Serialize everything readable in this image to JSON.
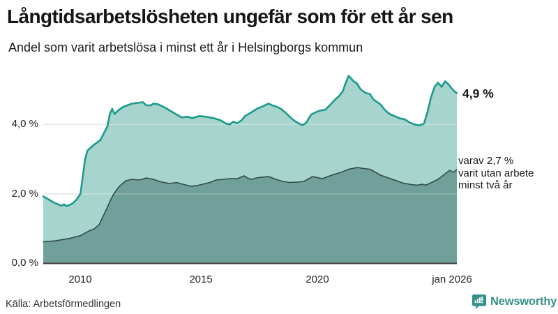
{
  "header": {
    "title": "Långtidsarbetslösheten ungefär som för ett år sen",
    "subtitle": "Andel som varit arbetslösa i minst ett år i Helsingborgs kommun"
  },
  "annotations": {
    "latest_total": "4,9 %",
    "secondary": [
      "varav 2,7 %",
      "varit utan arbete",
      "minst två år"
    ]
  },
  "footer": {
    "source": "Källa: Arbetsförmedlingen",
    "brand_name": "Newsworthy",
    "brand_color": "#35918a"
  },
  "chart_data": {
    "type": "area",
    "title": "Långtidsarbetslösheten ungefär som för ett år sen",
    "subtitle": "Andel som varit arbetslösa i minst ett år i Helsingborgs kommun",
    "unit": "%",
    "grid": "horizontal",
    "legend_position": "annotated-right",
    "x_range": [
      2008.42,
      2026.0
    ],
    "y_range": [
      0,
      5.62
    ],
    "x_ticks": [
      {
        "label": "2010",
        "year": 2010
      },
      {
        "label": "2015",
        "year": 2015
      },
      {
        "label": "2020",
        "year": 2020
      },
      {
        "label": "jan 2026",
        "year": 2026.0
      }
    ],
    "y_ticks": [
      {
        "label": "0,0 %",
        "value": 0
      },
      {
        "label": "2,0 %",
        "value": 2
      },
      {
        "label": "4,0 %",
        "value": 4
      }
    ],
    "colors": {
      "upper_line": "#1b9a8d",
      "upper_fill": "#a7d4cc",
      "lower_line": "#2f4b47",
      "lower_fill": "#70a099",
      "gridline": "#d3dada",
      "axis": "#3c3c3c"
    },
    "series": [
      {
        "name": "Andel arbetslösa minst ett år",
        "latest_label": "4,9 %",
        "latest_value": 4.9,
        "points": [
          [
            2008.42,
            1.93
          ],
          [
            2008.6,
            1.86
          ],
          [
            2008.75,
            1.8
          ],
          [
            2008.9,
            1.74
          ],
          [
            2009.05,
            1.7
          ],
          [
            2009.2,
            1.66
          ],
          [
            2009.3,
            1.7
          ],
          [
            2009.4,
            1.65
          ],
          [
            2009.55,
            1.68
          ],
          [
            2009.7,
            1.74
          ],
          [
            2009.85,
            1.85
          ],
          [
            2010.0,
            2.0
          ],
          [
            2010.1,
            2.5
          ],
          [
            2010.2,
            3.0
          ],
          [
            2010.3,
            3.25
          ],
          [
            2010.55,
            3.4
          ],
          [
            2010.85,
            3.55
          ],
          [
            2011.0,
            3.75
          ],
          [
            2011.15,
            3.95
          ],
          [
            2011.25,
            4.3
          ],
          [
            2011.35,
            4.45
          ],
          [
            2011.45,
            4.3
          ],
          [
            2011.6,
            4.4
          ],
          [
            2011.8,
            4.5
          ],
          [
            2012.0,
            4.55
          ],
          [
            2012.2,
            4.6
          ],
          [
            2012.45,
            4.62
          ],
          [
            2012.65,
            4.64
          ],
          [
            2012.8,
            4.55
          ],
          [
            2013.0,
            4.55
          ],
          [
            2013.1,
            4.6
          ],
          [
            2013.3,
            4.58
          ],
          [
            2013.55,
            4.5
          ],
          [
            2013.85,
            4.38
          ],
          [
            2014.1,
            4.28
          ],
          [
            2014.3,
            4.2
          ],
          [
            2014.55,
            4.22
          ],
          [
            2014.75,
            4.18
          ],
          [
            2015.05,
            4.24
          ],
          [
            2015.35,
            4.22
          ],
          [
            2015.65,
            4.18
          ],
          [
            2015.95,
            4.12
          ],
          [
            2016.2,
            4.02
          ],
          [
            2016.35,
            4.0
          ],
          [
            2016.5,
            4.08
          ],
          [
            2016.65,
            4.03
          ],
          [
            2016.85,
            4.12
          ],
          [
            2017.0,
            4.24
          ],
          [
            2017.25,
            4.34
          ],
          [
            2017.5,
            4.45
          ],
          [
            2017.75,
            4.52
          ],
          [
            2018.0,
            4.6
          ],
          [
            2018.15,
            4.55
          ],
          [
            2018.3,
            4.52
          ],
          [
            2018.5,
            4.46
          ],
          [
            2018.7,
            4.35
          ],
          [
            2018.9,
            4.22
          ],
          [
            2019.1,
            4.1
          ],
          [
            2019.3,
            4.02
          ],
          [
            2019.45,
            3.98
          ],
          [
            2019.6,
            4.05
          ],
          [
            2019.8,
            4.28
          ],
          [
            2020.0,
            4.35
          ],
          [
            2020.2,
            4.4
          ],
          [
            2020.4,
            4.42
          ],
          [
            2020.6,
            4.55
          ],
          [
            2020.85,
            4.73
          ],
          [
            2021.0,
            4.82
          ],
          [
            2021.15,
            4.95
          ],
          [
            2021.25,
            5.15
          ],
          [
            2021.4,
            5.4
          ],
          [
            2021.5,
            5.33
          ],
          [
            2021.6,
            5.25
          ],
          [
            2021.75,
            5.18
          ],
          [
            2021.9,
            5.02
          ],
          [
            2022.0,
            4.96
          ],
          [
            2022.15,
            4.9
          ],
          [
            2022.3,
            4.88
          ],
          [
            2022.45,
            4.72
          ],
          [
            2022.6,
            4.65
          ],
          [
            2022.75,
            4.58
          ],
          [
            2022.9,
            4.45
          ],
          [
            2023.05,
            4.35
          ],
          [
            2023.2,
            4.28
          ],
          [
            2023.35,
            4.24
          ],
          [
            2023.55,
            4.18
          ],
          [
            2023.8,
            4.14
          ],
          [
            2024.0,
            4.05
          ],
          [
            2024.2,
            4.0
          ],
          [
            2024.4,
            3.97
          ],
          [
            2024.6,
            4.02
          ],
          [
            2024.75,
            4.35
          ],
          [
            2024.9,
            4.78
          ],
          [
            2025.05,
            5.08
          ],
          [
            2025.2,
            5.2
          ],
          [
            2025.35,
            5.08
          ],
          [
            2025.5,
            5.24
          ],
          [
            2025.65,
            5.15
          ],
          [
            2025.8,
            5.02
          ],
          [
            2025.9,
            4.95
          ],
          [
            2026.0,
            4.9
          ]
        ]
      },
      {
        "name": "varav utan arbete minst två år",
        "latest_label": "varav 2,7 % varit utan arbete minst två år",
        "latest_value": 2.7,
        "points": [
          [
            2008.42,
            0.62
          ],
          [
            2008.95,
            0.65
          ],
          [
            2009.55,
            0.72
          ],
          [
            2010.0,
            0.8
          ],
          [
            2010.35,
            0.93
          ],
          [
            2010.6,
            1.0
          ],
          [
            2010.8,
            1.12
          ],
          [
            2011.1,
            1.55
          ],
          [
            2011.3,
            1.85
          ],
          [
            2011.42,
            2.0
          ],
          [
            2011.63,
            2.2
          ],
          [
            2011.93,
            2.38
          ],
          [
            2012.2,
            2.42
          ],
          [
            2012.5,
            2.4
          ],
          [
            2012.8,
            2.46
          ],
          [
            2013.1,
            2.42
          ],
          [
            2013.4,
            2.35
          ],
          [
            2013.78,
            2.3
          ],
          [
            2014.08,
            2.33
          ],
          [
            2014.35,
            2.28
          ],
          [
            2014.7,
            2.22
          ],
          [
            2014.97,
            2.24
          ],
          [
            2015.2,
            2.28
          ],
          [
            2015.5,
            2.33
          ],
          [
            2015.77,
            2.4
          ],
          [
            2016.07,
            2.42
          ],
          [
            2016.37,
            2.44
          ],
          [
            2016.67,
            2.44
          ],
          [
            2016.95,
            2.52
          ],
          [
            2017.1,
            2.46
          ],
          [
            2017.25,
            2.42
          ],
          [
            2017.55,
            2.47
          ],
          [
            2018.0,
            2.5
          ],
          [
            2018.3,
            2.42
          ],
          [
            2018.6,
            2.36
          ],
          [
            2018.9,
            2.33
          ],
          [
            2019.2,
            2.34
          ],
          [
            2019.5,
            2.36
          ],
          [
            2019.87,
            2.5
          ],
          [
            2020.14,
            2.46
          ],
          [
            2020.28,
            2.44
          ],
          [
            2020.52,
            2.5
          ],
          [
            2020.82,
            2.57
          ],
          [
            2021.12,
            2.63
          ],
          [
            2021.4,
            2.71
          ],
          [
            2021.77,
            2.76
          ],
          [
            2022.05,
            2.73
          ],
          [
            2022.3,
            2.71
          ],
          [
            2022.55,
            2.62
          ],
          [
            2022.75,
            2.54
          ],
          [
            2023.05,
            2.47
          ],
          [
            2023.35,
            2.4
          ],
          [
            2023.72,
            2.31
          ],
          [
            2024.08,
            2.27
          ],
          [
            2024.32,
            2.25
          ],
          [
            2024.52,
            2.28
          ],
          [
            2024.67,
            2.25
          ],
          [
            2024.9,
            2.32
          ],
          [
            2025.2,
            2.42
          ],
          [
            2025.45,
            2.55
          ],
          [
            2025.7,
            2.68
          ],
          [
            2025.85,
            2.62
          ],
          [
            2026.0,
            2.7
          ]
        ]
      }
    ]
  }
}
